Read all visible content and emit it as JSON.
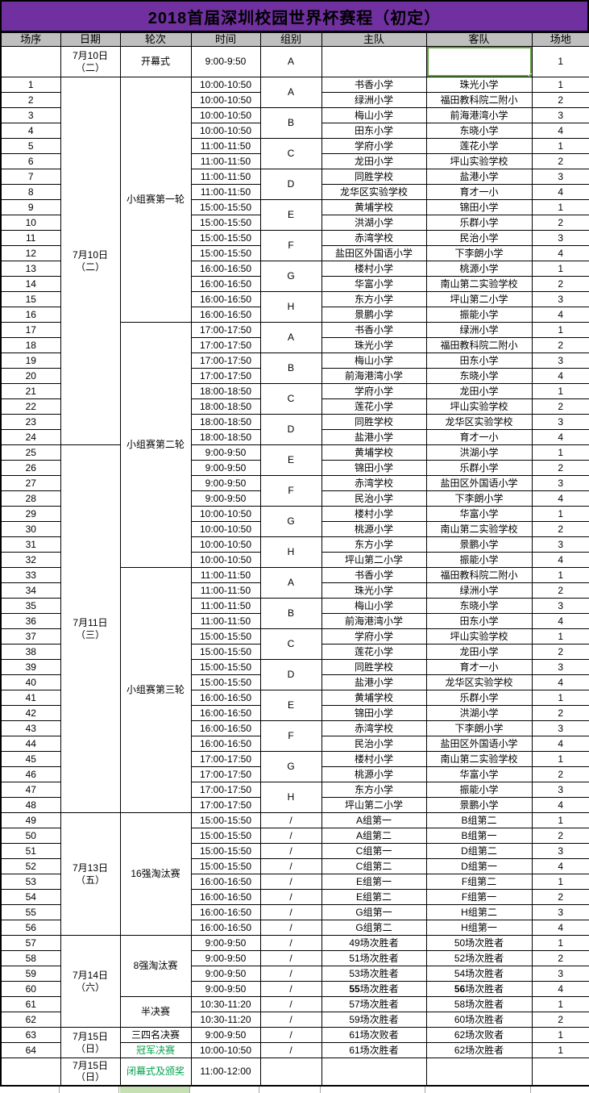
{
  "title": "2018首届深圳校园世界杯赛程（初定）",
  "columns": [
    "场序",
    "日期",
    "轮次",
    "时间",
    "组别",
    "主队",
    "客队",
    "场地"
  ],
  "colors": {
    "title_bg": "#7030A0",
    "header_bg": "#BFBFBF",
    "round_cyan": "#3DD4C8",
    "round_light_green": "#C6E0B4",
    "green_text": "#00A04A",
    "selection_green": "#5FA33E"
  },
  "opening": {
    "no": "",
    "date": "7月10日\n（二）",
    "round": "开幕式",
    "time": "9:00-9:50",
    "group": "A",
    "home": "",
    "away": "",
    "venue": "1",
    "away_cell_selected": true
  },
  "date_spans": [
    {
      "label": "7月10日\n（二）",
      "from": 1,
      "to": 24
    },
    {
      "label": "7月11日\n（三）",
      "from": 25,
      "to": 48
    },
    {
      "label": "7月13日\n（五）",
      "from": 49,
      "to": 56
    },
    {
      "label": "7月14日\n（六）",
      "from": 57,
      "to": 62
    },
    {
      "label": "7月15日\n（日）",
      "from": 63,
      "to": 64
    }
  ],
  "round_spans": [
    {
      "label": "小组赛第一轮",
      "from": 1,
      "to": 16,
      "bg": "none",
      "fg": "black"
    },
    {
      "label": "小组赛第二轮",
      "from": 17,
      "to": 32,
      "bg": "none",
      "fg": "black"
    },
    {
      "label": "小组赛第三轮",
      "from": 33,
      "to": 48,
      "bg": "none",
      "fg": "black"
    },
    {
      "label": "16强淘汰赛",
      "from": 49,
      "to": 56,
      "bg": "none",
      "fg": "black"
    },
    {
      "label": "8强淘汰赛",
      "from": 57,
      "to": 60,
      "bg": "cyan",
      "fg": "black"
    },
    {
      "label": "半决赛",
      "from": 61,
      "to": 62,
      "bg": "cyan",
      "fg": "black"
    },
    {
      "label": "三四名决赛",
      "from": 63,
      "to": 63,
      "bg": "green",
      "fg": "black"
    },
    {
      "label": "冠军决赛",
      "from": 64,
      "to": 64,
      "bg": "green",
      "fg": "green"
    }
  ],
  "matches": [
    {
      "no": 1,
      "time": "10:00-10:50",
      "group": "A",
      "home": "书香小学",
      "away": "珠光小学",
      "venue": "1"
    },
    {
      "no": 2,
      "time": "10:00-10:50",
      "group": "A",
      "home": "绿洲小学",
      "away": "福田教科院二附小",
      "venue": "2"
    },
    {
      "no": 3,
      "time": "10:00-10:50",
      "group": "B",
      "home": "梅山小学",
      "away": "前海港湾小学",
      "venue": "3"
    },
    {
      "no": 4,
      "time": "10:00-10:50",
      "group": "B",
      "home": "田东小学",
      "away": "东晓小学",
      "venue": "4"
    },
    {
      "no": 5,
      "time": "11:00-11:50",
      "group": "C",
      "home": "学府小学",
      "away": "莲花小学",
      "venue": "1"
    },
    {
      "no": 6,
      "time": "11:00-11:50",
      "group": "C",
      "home": "龙田小学",
      "away": "坪山实验学校",
      "venue": "2"
    },
    {
      "no": 7,
      "time": "11:00-11:50",
      "group": "D",
      "home": "同胜学校",
      "away": "盐港小学",
      "venue": "3"
    },
    {
      "no": 8,
      "time": "11:00-11:50",
      "group": "D",
      "home": "龙华区实验学校",
      "away": "育才一小",
      "venue": "4"
    },
    {
      "no": 9,
      "time": "15:00-15:50",
      "group": "E",
      "home": "黄埔学校",
      "away": "锦田小学",
      "venue": "1"
    },
    {
      "no": 10,
      "time": "15:00-15:50",
      "group": "E",
      "home": "洪湖小学",
      "away": "乐群小学",
      "venue": "2"
    },
    {
      "no": 11,
      "time": "15:00-15:50",
      "group": "F",
      "home": "赤湾学校",
      "away": "民治小学",
      "venue": "3"
    },
    {
      "no": 12,
      "time": "15:00-15:50",
      "group": "F",
      "home": "盐田区外国语小学",
      "away": "下李朗小学",
      "venue": "4"
    },
    {
      "no": 13,
      "time": "16:00-16:50",
      "group": "G",
      "home": "楼村小学",
      "away": "桃源小学",
      "venue": "1"
    },
    {
      "no": 14,
      "time": "16:00-16:50",
      "group": "G",
      "home": "华富小学",
      "away": "南山第二实验学校",
      "venue": "2"
    },
    {
      "no": 15,
      "time": "16:00-16:50",
      "group": "H",
      "home": "东方小学",
      "away": "坪山第二小学",
      "venue": "3"
    },
    {
      "no": 16,
      "time": "16:00-16:50",
      "group": "H",
      "home": "景鹏小学",
      "away": "振能小学",
      "venue": "4"
    },
    {
      "no": 17,
      "time": "17:00-17:50",
      "group": "A",
      "home": "书香小学",
      "away": "绿洲小学",
      "venue": "1"
    },
    {
      "no": 18,
      "time": "17:00-17:50",
      "group": "A",
      "home": "珠光小学",
      "away": "福田教科院二附小",
      "venue": "2"
    },
    {
      "no": 19,
      "time": "17:00-17:50",
      "group": "B",
      "home": "梅山小学",
      "away": "田东小学",
      "venue": "3"
    },
    {
      "no": 20,
      "time": "17:00-17:50",
      "group": "B",
      "home": "前海港湾小学",
      "away": "东晓小学",
      "venue": "4"
    },
    {
      "no": 21,
      "time": "18:00-18:50",
      "group": "C",
      "home": "学府小学",
      "away": "龙田小学",
      "venue": "1"
    },
    {
      "no": 22,
      "time": "18:00-18:50",
      "group": "C",
      "home": "莲花小学",
      "away": "坪山实验学校",
      "venue": "2"
    },
    {
      "no": 23,
      "time": "18:00-18:50",
      "group": "D",
      "home": "同胜学校",
      "away": "龙华区实验学校",
      "venue": "3"
    },
    {
      "no": 24,
      "time": "18:00-18:50",
      "group": "D",
      "home": "盐港小学",
      "away": "育才一小",
      "venue": "4"
    },
    {
      "no": 25,
      "time": "9:00-9:50",
      "group": "E",
      "home": "黄埔学校",
      "away": "洪湖小学",
      "venue": "1"
    },
    {
      "no": 26,
      "time": "9:00-9:50",
      "group": "E",
      "home": "锦田小学",
      "away": "乐群小学",
      "venue": "2"
    },
    {
      "no": 27,
      "time": "9:00-9:50",
      "group": "F",
      "home": "赤湾学校",
      "away": "盐田区外国语小学",
      "venue": "3"
    },
    {
      "no": 28,
      "time": "9:00-9:50",
      "group": "F",
      "home": "民治小学",
      "away": "下李朗小学",
      "venue": "4"
    },
    {
      "no": 29,
      "time": "10:00-10:50",
      "group": "G",
      "home": "楼村小学",
      "away": "华富小学",
      "venue": "1"
    },
    {
      "no": 30,
      "time": "10:00-10:50",
      "group": "G",
      "home": "桃源小学",
      "away": "南山第二实验学校",
      "venue": "2"
    },
    {
      "no": 31,
      "time": "10:00-10:50",
      "group": "H",
      "home": "东方小学",
      "away": "景鹏小学",
      "venue": "3"
    },
    {
      "no": 32,
      "time": "10:00-10:50",
      "group": "H",
      "home": "坪山第二小学",
      "away": "振能小学",
      "venue": "4"
    },
    {
      "no": 33,
      "time": "11:00-11:50",
      "group": "A",
      "home": "书香小学",
      "away": "福田教科院二附小",
      "venue": "1"
    },
    {
      "no": 34,
      "time": "11:00-11:50",
      "group": "A",
      "home": "珠光小学",
      "away": "绿洲小学",
      "venue": "2"
    },
    {
      "no": 35,
      "time": "11:00-11:50",
      "group": "B",
      "home": "梅山小学",
      "away": "东晓小学",
      "venue": "3"
    },
    {
      "no": 36,
      "time": "11:00-11:50",
      "group": "B",
      "home": "前海港湾小学",
      "away": "田东小学",
      "venue": "4"
    },
    {
      "no": 37,
      "time": "15:00-15:50",
      "group": "C",
      "home": "学府小学",
      "away": "坪山实验学校",
      "venue": "1"
    },
    {
      "no": 38,
      "time": "15:00-15:50",
      "group": "C",
      "home": "莲花小学",
      "away": "龙田小学",
      "venue": "2"
    },
    {
      "no": 39,
      "time": "15:00-15:50",
      "group": "D",
      "home": "同胜学校",
      "away": "育才一小",
      "venue": "3"
    },
    {
      "no": 40,
      "time": "15:00-15:50",
      "group": "D",
      "home": "盐港小学",
      "away": "龙华区实验学校",
      "venue": "4"
    },
    {
      "no": 41,
      "time": "16:00-16:50",
      "group": "E",
      "home": "黄埔学校",
      "away": "乐群小学",
      "venue": "1"
    },
    {
      "no": 42,
      "time": "16:00-16:50",
      "group": "E",
      "home": "锦田小学",
      "away": "洪湖小学",
      "venue": "2"
    },
    {
      "no": 43,
      "time": "16:00-16:50",
      "group": "F",
      "home": "赤湾学校",
      "away": "下李朗小学",
      "venue": "3"
    },
    {
      "no": 44,
      "time": "16:00-16:50",
      "group": "F",
      "home": "民治小学",
      "away": "盐田区外国语小学",
      "venue": "4"
    },
    {
      "no": 45,
      "time": "17:00-17:50",
      "group": "G",
      "home": "楼村小学",
      "away": "南山第二实验学校",
      "venue": "1"
    },
    {
      "no": 46,
      "time": "17:00-17:50",
      "group": "G",
      "home": "桃源小学",
      "away": "华富小学",
      "venue": "2"
    },
    {
      "no": 47,
      "time": "17:00-17:50",
      "group": "H",
      "home": "东方小学",
      "away": "振能小学",
      "venue": "3"
    },
    {
      "no": 48,
      "time": "17:00-17:50",
      "group": "H",
      "home": "坪山第二小学",
      "away": "景鹏小学",
      "venue": "4"
    },
    {
      "no": 49,
      "time": "15:00-15:50",
      "group": "/",
      "home": "A组第一",
      "away": "B组第二",
      "venue": "1"
    },
    {
      "no": 50,
      "time": "15:00-15:50",
      "group": "/",
      "home": "A组第二",
      "away": "B组第一",
      "venue": "2"
    },
    {
      "no": 51,
      "time": "15:00-15:50",
      "group": "/",
      "home": "C组第一",
      "away": "D组第二",
      "venue": "3"
    },
    {
      "no": 52,
      "time": "15:00-15:50",
      "group": "/",
      "home": "C组第二",
      "away": "D组第一",
      "venue": "4"
    },
    {
      "no": 53,
      "time": "16:00-16:50",
      "group": "/",
      "home": "E组第一",
      "away": "F组第二",
      "venue": "1"
    },
    {
      "no": 54,
      "time": "16:00-16:50",
      "group": "/",
      "home": "E组第二",
      "away": "F组第一",
      "venue": "2"
    },
    {
      "no": 55,
      "time": "16:00-16:50",
      "group": "/",
      "home": "G组第一",
      "away": "H组第二",
      "venue": "3"
    },
    {
      "no": 56,
      "time": "16:00-16:50",
      "group": "/",
      "home": "G组第二",
      "away": "H组第一",
      "venue": "4"
    },
    {
      "no": 57,
      "time": "9:00-9:50",
      "group": "/",
      "home": "49场次胜者",
      "away": "50场次胜者",
      "venue": "1"
    },
    {
      "no": 58,
      "time": "9:00-9:50",
      "group": "/",
      "home": "51场次胜者",
      "away": "52场次胜者",
      "venue": "2"
    },
    {
      "no": 59,
      "time": "9:00-9:50",
      "group": "/",
      "home": "53场次胜者",
      "away": "54场次胜者",
      "venue": "3"
    },
    {
      "no": 60,
      "time": "9:00-9:50",
      "group": "/",
      "home": "55场次胜者",
      "away": "56场次胜者",
      "venue": "4",
      "bold_digits": true
    },
    {
      "no": 61,
      "time": "10:30-11:20",
      "group": "/",
      "home": "57场次胜者",
      "away": "58场次胜者",
      "venue": "1"
    },
    {
      "no": 62,
      "time": "10:30-11:20",
      "group": "/",
      "home": "59场次胜者",
      "away": "60场次胜者",
      "venue": "2"
    },
    {
      "no": 63,
      "time": "9:00-9:50",
      "group": "/",
      "home": "61场次败者",
      "away": "62场次败者",
      "venue": "1"
    },
    {
      "no": 64,
      "time": "10:00-10:50",
      "group": "/",
      "home": "61场次胜者",
      "away": "62场次胜者",
      "venue": "1"
    }
  ],
  "closing": {
    "no": "",
    "date": "7月15日\n（日）",
    "round": "闭幕式及颁奖",
    "time": "11:00-12:00",
    "group": "",
    "home": "",
    "away": "",
    "venue": "",
    "round_bg": "green",
    "round_fg": "green"
  }
}
